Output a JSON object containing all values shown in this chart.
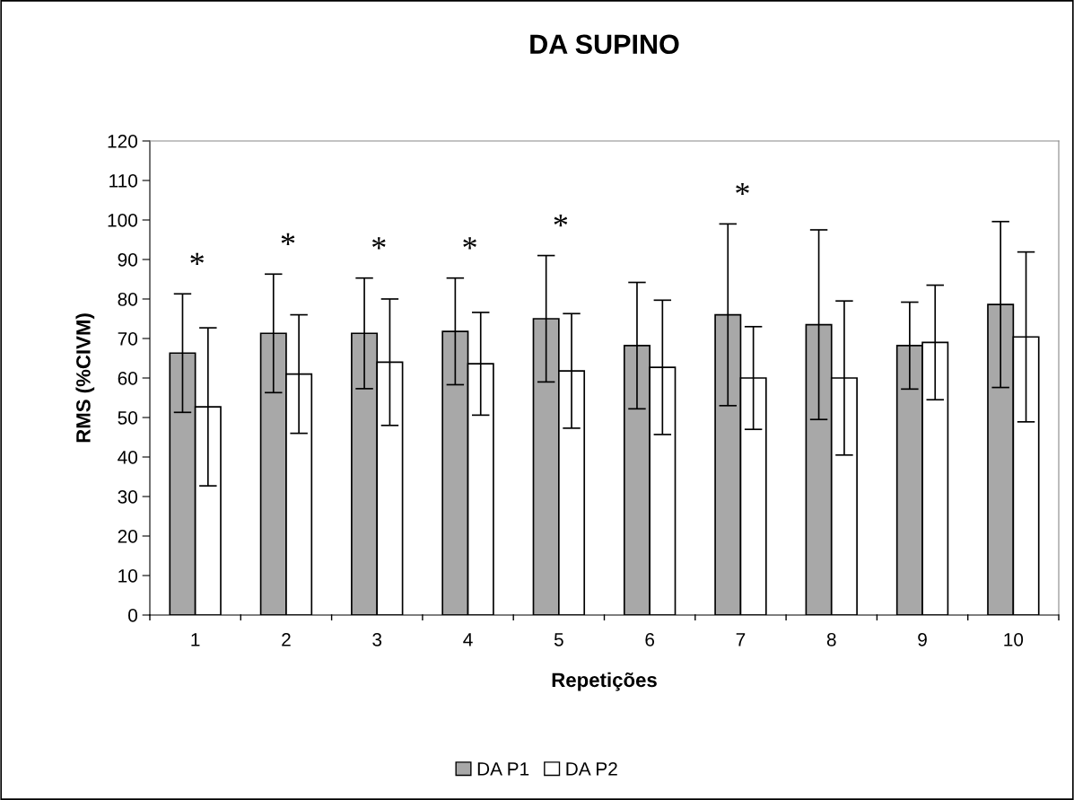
{
  "chart_data": {
    "type": "bar",
    "title": "DA SUPINO",
    "xlabel": "Repetições",
    "ylabel": "RMS (%CIVM)",
    "categories": [
      "1",
      "2",
      "3",
      "4",
      "5",
      "6",
      "7",
      "8",
      "9",
      "10"
    ],
    "series": [
      {
        "name": "DA P1",
        "color": "#a8a8a8",
        "values": [
          66.3,
          71.3,
          71.3,
          71.8,
          75,
          68.2,
          76,
          73.5,
          68.2,
          78.6
        ],
        "errors": [
          15,
          15,
          14,
          13.5,
          16,
          16,
          23,
          24,
          11,
          21
        ]
      },
      {
        "name": "DA P2",
        "color": "#ffffff",
        "values": [
          52.7,
          61,
          64,
          63.6,
          61.8,
          62.7,
          60,
          60,
          69,
          70.4
        ],
        "errors": [
          20,
          15,
          16,
          13,
          14.5,
          17,
          13,
          19.5,
          14.5,
          21.5
        ]
      }
    ],
    "ylim": [
      0,
      120
    ],
    "yticks": [
      0,
      10,
      20,
      30,
      40,
      50,
      60,
      70,
      80,
      90,
      100,
      110,
      120
    ],
    "grid": false,
    "legend": "bottom",
    "annotations": [
      {
        "text": "*",
        "x": "1",
        "y": 81.3
      },
      {
        "text": "*",
        "x": "2",
        "y": 86.3
      },
      {
        "text": "*",
        "x": "3",
        "y": 85.3
      },
      {
        "text": "*",
        "x": "4",
        "y": 85.3
      },
      {
        "text": "*",
        "x": "5",
        "y": 91
      },
      {
        "text": "*",
        "x": "7",
        "y": 99
      }
    ]
  }
}
